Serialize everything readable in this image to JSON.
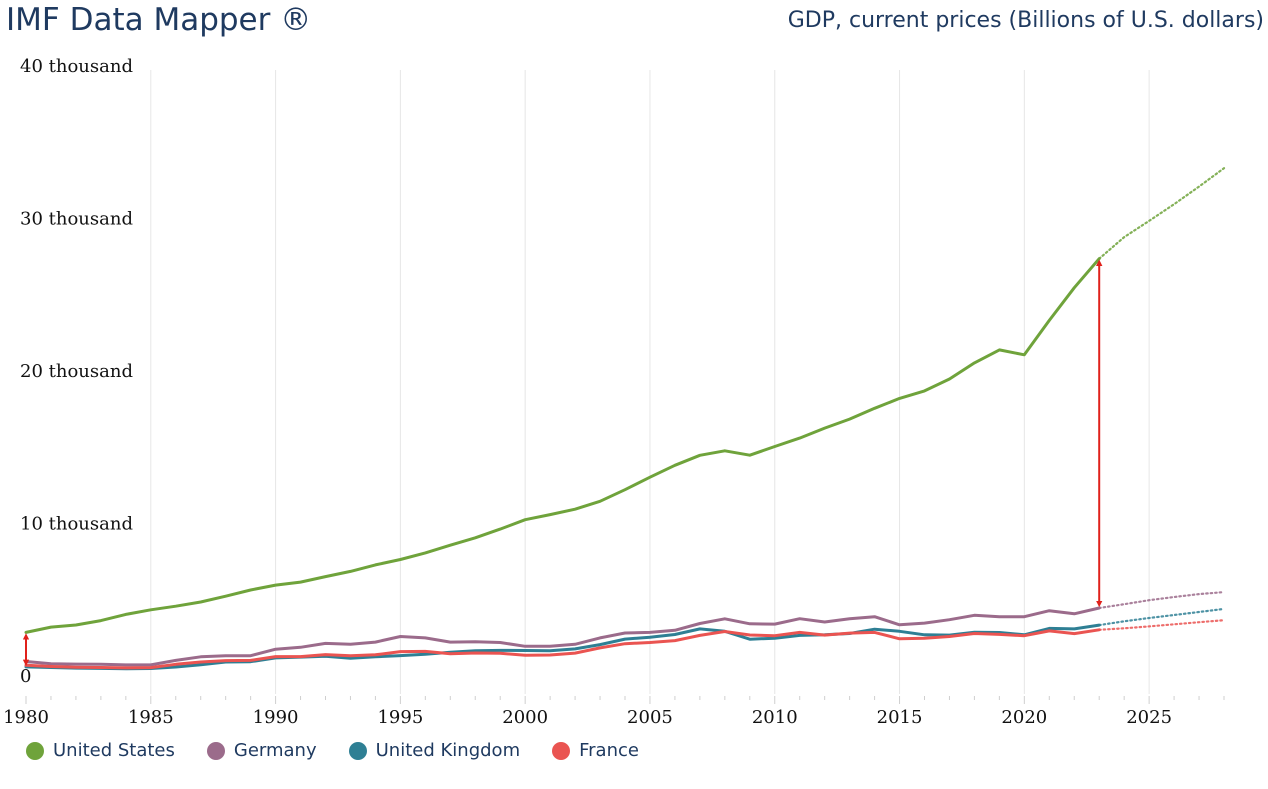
{
  "header": {
    "app_title": "IMF Data Mapper ®",
    "indicator_title": "GDP, current prices (Billions of U.S. dollars)"
  },
  "chart_data": {
    "type": "line",
    "title": "GDP, current prices (Billions of U.S. dollars)",
    "xlabel": "",
    "ylabel": "",
    "xlim": [
      1980,
      2028
    ],
    "ylim": [
      0,
      40000
    ],
    "yticks": [
      0,
      10000,
      20000,
      30000,
      40000
    ],
    "ytick_labels": [
      "0",
      "10 thousand",
      "20 thousand",
      "30 thousand",
      "40 thousand"
    ],
    "xticks": [
      1980,
      1985,
      1990,
      1995,
      2000,
      2005,
      2010,
      2015,
      2020,
      2025
    ],
    "xtick_labels": [
      "1980",
      "1985",
      "1990",
      "1995",
      "2000",
      "2005",
      "2010",
      "2015",
      "2020",
      "2025"
    ],
    "grid": "vertical",
    "last_actual_year": 2023,
    "forecast_style": "dotted",
    "x": [
      1980,
      1981,
      1982,
      1983,
      1984,
      1985,
      1986,
      1987,
      1988,
      1989,
      1990,
      1991,
      1992,
      1993,
      1994,
      1995,
      1996,
      1997,
      1998,
      1999,
      2000,
      2001,
      2002,
      2003,
      2004,
      2005,
      2006,
      2007,
      2008,
      2009,
      2010,
      2011,
      2012,
      2013,
      2014,
      2015,
      2016,
      2017,
      2018,
      2019,
      2020,
      2021,
      2022,
      2023,
      2024,
      2025,
      2026,
      2027,
      2028
    ],
    "series": [
      {
        "name": "United States",
        "color": "#6fa33b",
        "values": [
          2857,
          3207,
          3343,
          3634,
          4037,
          4339,
          4580,
          4855,
          5236,
          5642,
          5963,
          6158,
          6520,
          6859,
          7287,
          7640,
          8073,
          8578,
          9063,
          9631,
          10251,
          10582,
          10936,
          11458,
          12214,
          13037,
          13815,
          14475,
          14770,
          14478,
          15049,
          15600,
          16254,
          16843,
          17551,
          18206,
          18695,
          19477,
          20533,
          21381,
          21060,
          23315,
          25464,
          27361,
          28781,
          29840,
          30935,
          32090,
          33300
        ]
      },
      {
        "name": "Germany",
        "color": "#9b6b8b",
        "values": [
          950,
          800,
          780,
          770,
          730,
          730,
          1020,
          1260,
          1330,
          1330,
          1760,
          1880,
          2140,
          2080,
          2220,
          2590,
          2500,
          2220,
          2240,
          2200,
          1950,
          1950,
          2080,
          2500,
          2820,
          2860,
          3000,
          3440,
          3750,
          3420,
          3400,
          3760,
          3540,
          3750,
          3890,
          3360,
          3470,
          3690,
          3980,
          3890,
          3890,
          4280,
          4080,
          4460,
          4710,
          4970,
          5180,
          5370,
          5500
        ]
      },
      {
        "name": "United Kingdom",
        "color": "#2e7f94",
        "values": [
          600,
          560,
          520,
          500,
          470,
          490,
          590,
          740,
          920,
          940,
          1190,
          1240,
          1300,
          1170,
          1260,
          1340,
          1420,
          1560,
          1650,
          1680,
          1670,
          1650,
          1780,
          2060,
          2420,
          2540,
          2720,
          3090,
          2930,
          2410,
          2480,
          2660,
          2700,
          2790,
          3070,
          2930,
          2700,
          2680,
          2870,
          2850,
          2700,
          3120,
          3090,
          3340,
          3590,
          3800,
          4000,
          4200,
          4400
        ]
      },
      {
        "name": "France",
        "color": "#ea5451",
        "values": [
          700,
          620,
          580,
          560,
          530,
          550,
          770,
          920,
          1010,
          1020,
          1270,
          1270,
          1400,
          1330,
          1390,
          1600,
          1610,
          1460,
          1510,
          1490,
          1360,
          1380,
          1500,
          1840,
          2120,
          2200,
          2320,
          2660,
          2920,
          2690,
          2640,
          2860,
          2680,
          2810,
          2860,
          2440,
          2470,
          2590,
          2790,
          2730,
          2640,
          2960,
          2780,
          3030,
          3130,
          3250,
          3390,
          3530,
          3660
        ]
      }
    ],
    "annotations": [
      {
        "type": "double-arrow",
        "color": "#e0211b",
        "x": 1980,
        "from": 600,
        "to": 2857
      },
      {
        "type": "double-arrow",
        "color": "#e0211b",
        "x": 2023,
        "from": 4460,
        "to": 27361
      }
    ]
  },
  "legend": [
    {
      "label": "United States",
      "color": "#6fa33b"
    },
    {
      "label": "Germany",
      "color": "#9b6b8b"
    },
    {
      "label": "United Kingdom",
      "color": "#2e7f94"
    },
    {
      "label": "France",
      "color": "#ea5451"
    }
  ]
}
